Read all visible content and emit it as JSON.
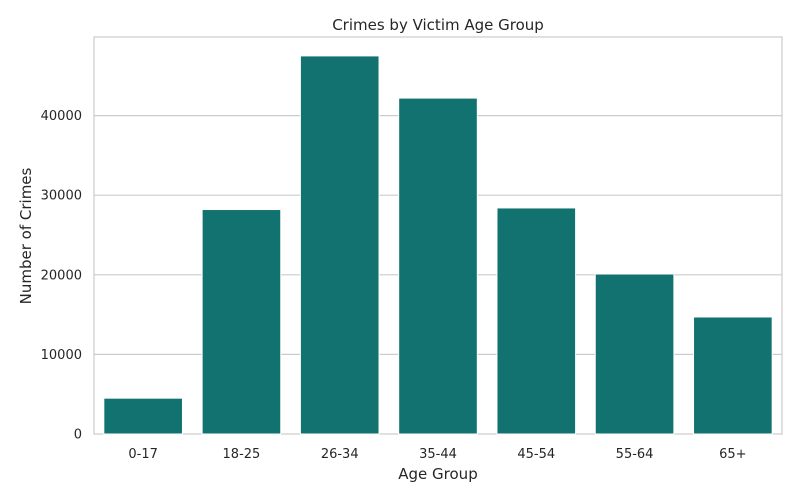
{
  "chart_data": {
    "type": "bar",
    "title": "Crimes by Victim Age Group",
    "xlabel": "Age Group",
    "ylabel": "Number of Crimes",
    "categories": [
      "0-17",
      "18-25",
      "26-34",
      "35-44",
      "45-54",
      "55-64",
      "65+"
    ],
    "values": [
      4500,
      28200,
      47500,
      42200,
      28400,
      20100,
      14700
    ],
    "ylim": [
      0,
      49875
    ],
    "yticks": [
      0,
      10000,
      20000,
      30000,
      40000
    ],
    "ytick_labels": [
      "0",
      "10000",
      "20000",
      "30000",
      "40000"
    ],
    "grid": true,
    "bar_color": "#11726f"
  }
}
